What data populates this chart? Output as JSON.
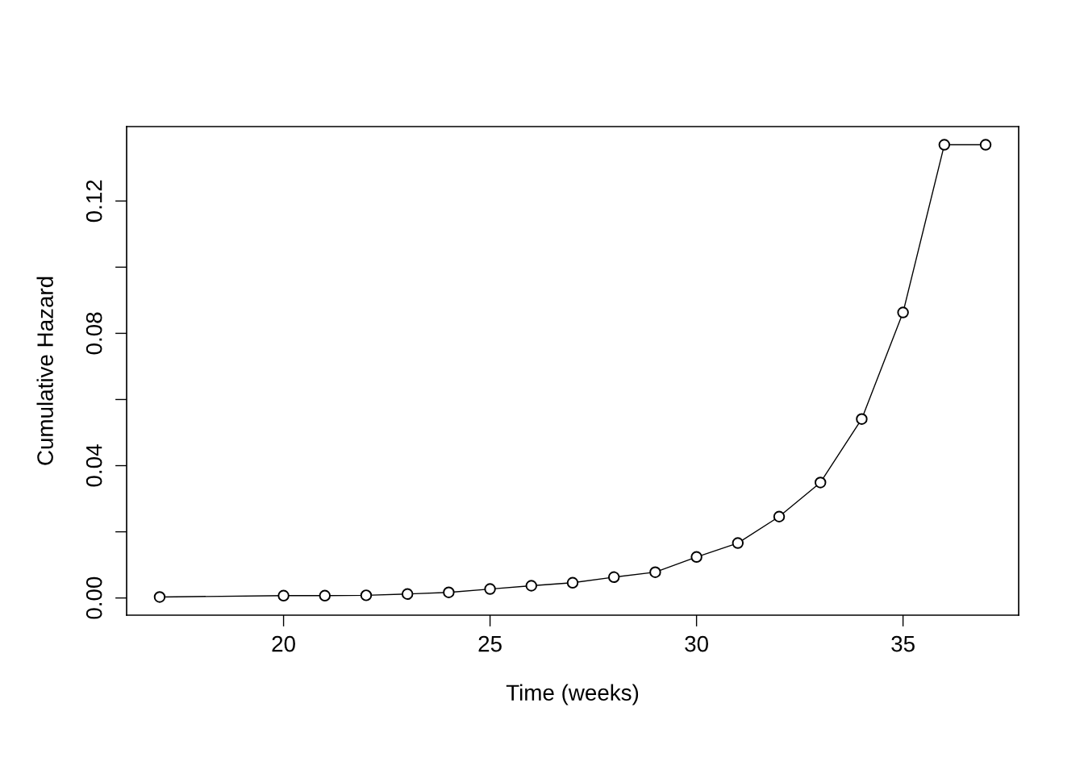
{
  "chart_data": {
    "type": "line",
    "xlabel": "Time (weeks)",
    "ylabel": "Cumulative Hazard",
    "x": [
      17,
      20,
      21,
      22,
      23,
      24,
      25,
      26,
      27,
      28,
      29,
      30,
      31,
      32,
      33,
      34,
      35,
      36,
      37
    ],
    "series": [
      {
        "color": "#000000",
        "values": [
          0.0003,
          0.0007,
          0.0007,
          0.0008,
          0.0012,
          0.0017,
          0.0027,
          0.0037,
          0.0046,
          0.0063,
          0.0078,
          0.0124,
          0.0166,
          0.0246,
          0.0349,
          0.0541,
          0.0863,
          0.137,
          0.137
        ]
      }
    ],
    "xlim": [
      16.2,
      37.8
    ],
    "ylim": [
      -0.0052,
      0.1425
    ],
    "xticks": [
      20,
      25,
      30,
      35
    ],
    "yticks": [
      {
        "value": 0,
        "label": "0.00"
      },
      {
        "value": 0.02,
        "label": null
      },
      {
        "value": 0.04,
        "label": "0.04"
      },
      {
        "value": 0.06,
        "label": null
      },
      {
        "value": 0.08,
        "label": "0.08"
      },
      {
        "value": 0.1,
        "label": null
      },
      {
        "value": 0.12,
        "label": "0.12"
      }
    ],
    "marker": "circle",
    "line_style": "solid",
    "grid": false,
    "legend": false
  }
}
